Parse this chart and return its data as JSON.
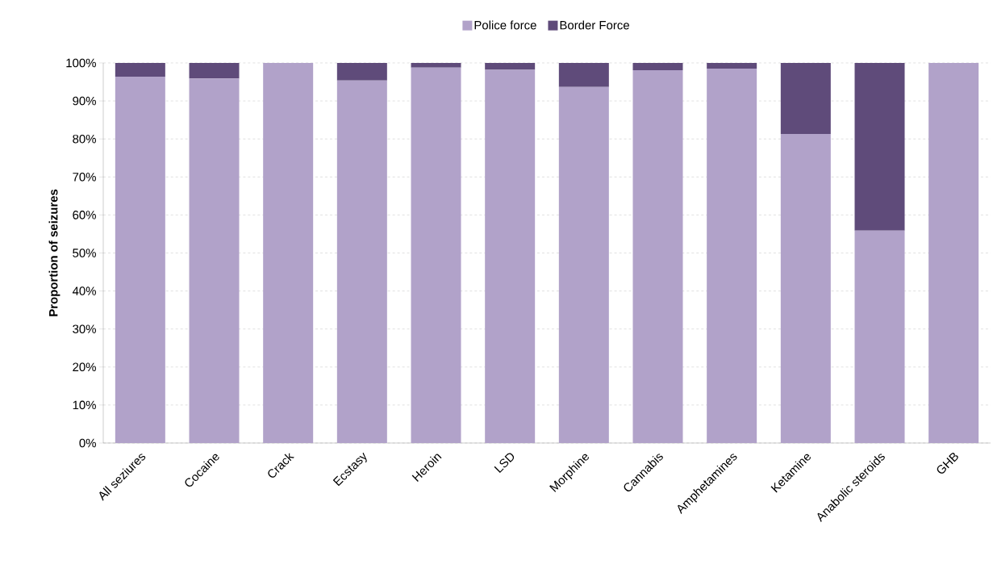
{
  "chart_data": {
    "type": "bar",
    "stacked": true,
    "ylabel": "Proportion of seizures",
    "categories": [
      "All seziures",
      "Cocaine",
      "Crack",
      "Ecstasy",
      "Heroin",
      "LSD",
      "Morphine",
      "Cannabis",
      "Amphetamines",
      "Ketamine",
      "Anabolic steroids",
      "GHB"
    ],
    "series": [
      {
        "name": "Police force",
        "color": "#b1a2c9",
        "values": [
          96.4,
          95.9,
          100,
          95.4,
          98.8,
          98.2,
          93.7,
          98.1,
          98.5,
          81.3,
          55.9,
          100
        ]
      },
      {
        "name": "Border Force",
        "color": "#5f4b7a",
        "values": [
          3.6,
          4.1,
          0,
          4.6,
          1.2,
          1.8,
          6.3,
          1.9,
          1.5,
          18.7,
          44.1,
          0
        ]
      }
    ],
    "ylim": [
      0,
      100
    ],
    "yticks": [
      {
        "value": 0,
        "label": "0%"
      },
      {
        "value": 10,
        "label": "10%"
      },
      {
        "value": 20,
        "label": "20%"
      },
      {
        "value": 30,
        "label": "30%"
      },
      {
        "value": 40,
        "label": "40%"
      },
      {
        "value": 50,
        "label": "50%"
      },
      {
        "value": 60,
        "label": "60%"
      },
      {
        "value": 70,
        "label": "70%"
      },
      {
        "value": 80,
        "label": "80%"
      },
      {
        "value": 90,
        "label": "90%"
      },
      {
        "value": 100,
        "label": "100%"
      }
    ],
    "grid": "y",
    "legend": "top"
  }
}
